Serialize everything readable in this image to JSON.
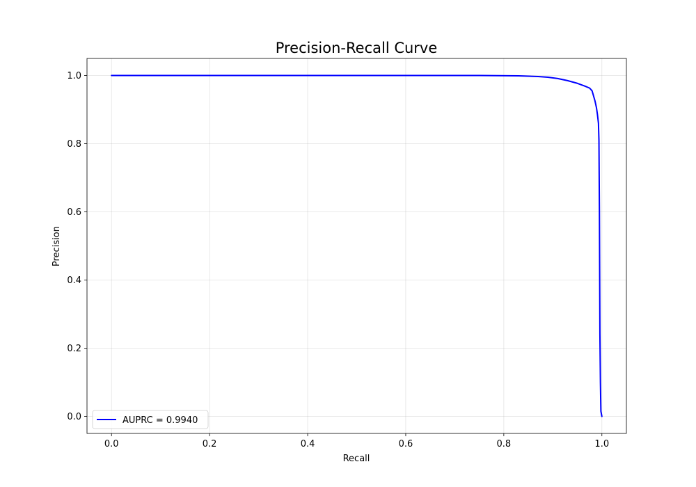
{
  "chart_data": {
    "type": "line",
    "title": "Precision-Recall Curve",
    "xlabel": "Recall",
    "ylabel": "Precision",
    "xlim": [
      -0.05,
      1.05
    ],
    "ylim": [
      -0.05,
      1.05
    ],
    "xticks": [
      0.0,
      0.2,
      0.4,
      0.6,
      0.8,
      1.0
    ],
    "xtick_labels": [
      "0.0",
      "0.2",
      "0.4",
      "0.6",
      "0.8",
      "1.0"
    ],
    "yticks": [
      0.0,
      0.2,
      0.4,
      0.6,
      0.8,
      1.0
    ],
    "ytick_labels": [
      "0.0",
      "0.2",
      "0.4",
      "0.6",
      "0.8",
      "1.0"
    ],
    "grid": true,
    "legend_position": "lower-left",
    "series": [
      {
        "name": "AUPRC = 0.9940",
        "color": "#0000ff",
        "x": [
          0.0,
          0.2,
          0.4,
          0.6,
          0.75,
          0.83,
          0.85,
          0.87,
          0.89,
          0.91,
          0.93,
          0.95,
          0.965,
          0.975,
          0.98,
          0.983,
          0.986,
          0.989,
          0.991,
          0.993,
          0.994,
          0.995,
          0.996,
          0.997,
          0.998,
          1.0
        ],
        "y": [
          1.0,
          1.0,
          1.0,
          1.0,
          1.0,
          0.999,
          0.998,
          0.997,
          0.995,
          0.991,
          0.985,
          0.977,
          0.969,
          0.963,
          0.955,
          0.94,
          0.925,
          0.905,
          0.885,
          0.86,
          0.81,
          0.6,
          0.24,
          0.1,
          0.015,
          0.0
        ]
      }
    ]
  }
}
